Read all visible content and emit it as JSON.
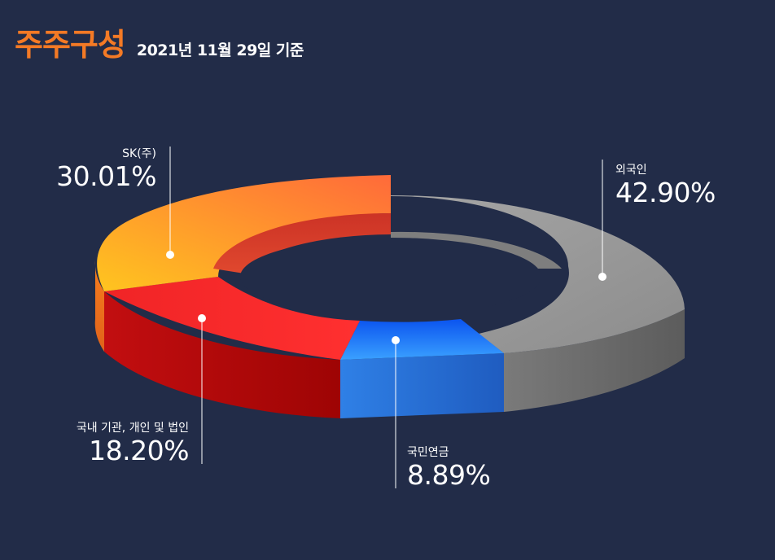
{
  "header": {
    "title": "주주구성",
    "subtitle": "2021년 11월 29일 기준"
  },
  "chart_data": {
    "type": "pie",
    "title": "주주구성",
    "subtitle": "2021년 11월 29일 기준",
    "slices": [
      {
        "label": "외국인",
        "value": 42.9,
        "display": "42.90%",
        "color": "#9a9a9a"
      },
      {
        "label": "국민연금",
        "value": 8.89,
        "display": "8.89%",
        "color": "#1e7be8"
      },
      {
        "label": "국내 기관, 개인 및 법인",
        "value": 18.2,
        "display": "18.20%",
        "color": "#ee2226"
      },
      {
        "label": "SK(주)",
        "value": 30.01,
        "display": "30.01%",
        "color": "#fca21f"
      }
    ]
  }
}
